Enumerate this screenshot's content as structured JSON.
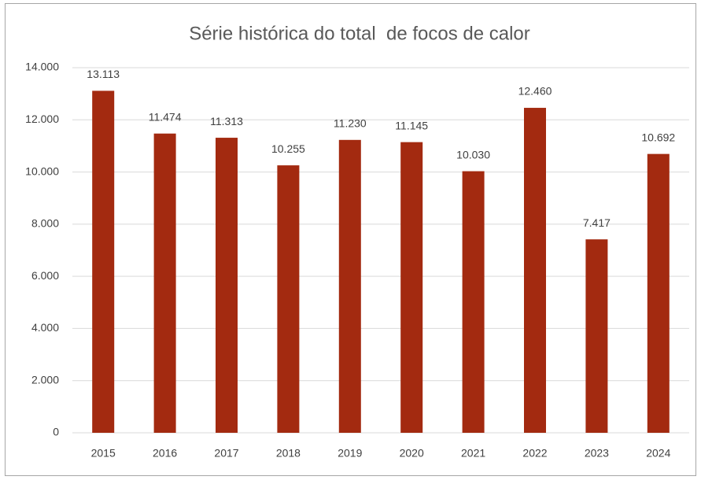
{
  "chart_data": {
    "type": "bar",
    "title": "Série histórica do total  de focos de calor",
    "categories": [
      "2015",
      "2016",
      "2017",
      "2018",
      "2019",
      "2020",
      "2021",
      "2022",
      "2023",
      "2024"
    ],
    "values": [
      13113,
      11474,
      11313,
      10255,
      11230,
      11145,
      10030,
      12460,
      7417,
      10692
    ],
    "value_labels": [
      "13.113",
      "11.474",
      "11.313",
      "10.255",
      "11.230",
      "11.145",
      "10.030",
      "12.460",
      "7.417",
      "10.692"
    ],
    "color": "#a32a10",
    "ylim": [
      0,
      14000
    ],
    "yticks": [
      0,
      {
        "value": 2000,
        "label": "2.000"
      },
      {
        "value": 4000,
        "label": "4.000"
      },
      {
        "value": 6000,
        "label": "6.000"
      },
      {
        "value": 8000,
        "label": "8.000"
      },
      {
        "value": 10000,
        "label": "10.000"
      },
      {
        "value": 12000,
        "label": "12.000"
      },
      {
        "value": 14000,
        "label": "14.000"
      }
    ],
    "grid": true
  }
}
